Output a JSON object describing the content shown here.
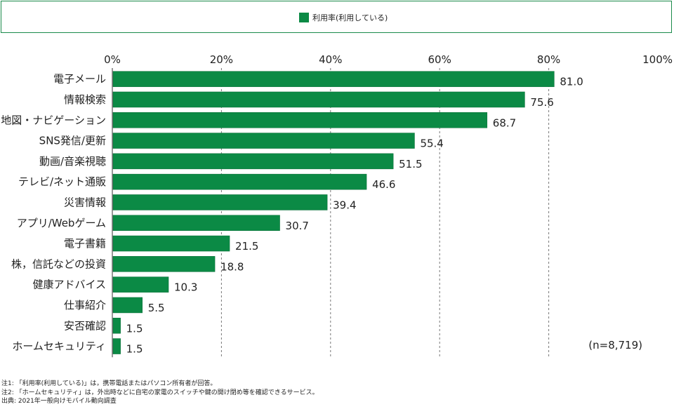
{
  "legend": {
    "label": "利用率(利用している)"
  },
  "colors": {
    "bar": "#0b8a45",
    "grid": "#777777",
    "frame": "#1a8a4a"
  },
  "chart_data": {
    "type": "bar",
    "orientation": "horizontal",
    "xlim": [
      0,
      100
    ],
    "ticks": [
      "0%",
      "20%",
      "40%",
      "60%",
      "80%",
      "100%"
    ],
    "tick_values": [
      0,
      20,
      40,
      60,
      80,
      100
    ],
    "grid": "dashed-vertical",
    "categories": [
      "電子メール",
      "情報検索",
      "地図・ナビゲーション",
      "SNS発信/更新",
      "動画/音楽視聴",
      "テレビ/ネット通販",
      "災害情報",
      "アプリ/Webゲーム",
      "電子書籍",
      "株，信託などの投資",
      "健康アドバイス",
      "仕事紹介",
      "安否確認",
      "ホームセキュリティ"
    ],
    "values": [
      81.0,
      75.6,
      68.7,
      55.4,
      51.5,
      46.6,
      39.4,
      30.7,
      21.5,
      18.8,
      10.3,
      5.5,
      1.5,
      1.5
    ],
    "value_labels": [
      "81.0",
      "75.6",
      "68.7",
      "55.4",
      "51.5",
      "46.6",
      "39.4",
      "30.7",
      "21.5",
      "18.8",
      "10.3",
      "5.5",
      "1.5",
      "1.5"
    ],
    "sample_note": "(n=8,719)"
  },
  "notes": [
    "注1: 「利用率(利用している)」は，携帯電話またはパソコン所有者が回答。",
    "注2: 「ホームセキュリティ」は，外出時などに自宅の家電のスイッチや鍵の開け閉め等を確認できるサービス。",
    "出典: 2021年一般向けモバイル動向調査"
  ]
}
